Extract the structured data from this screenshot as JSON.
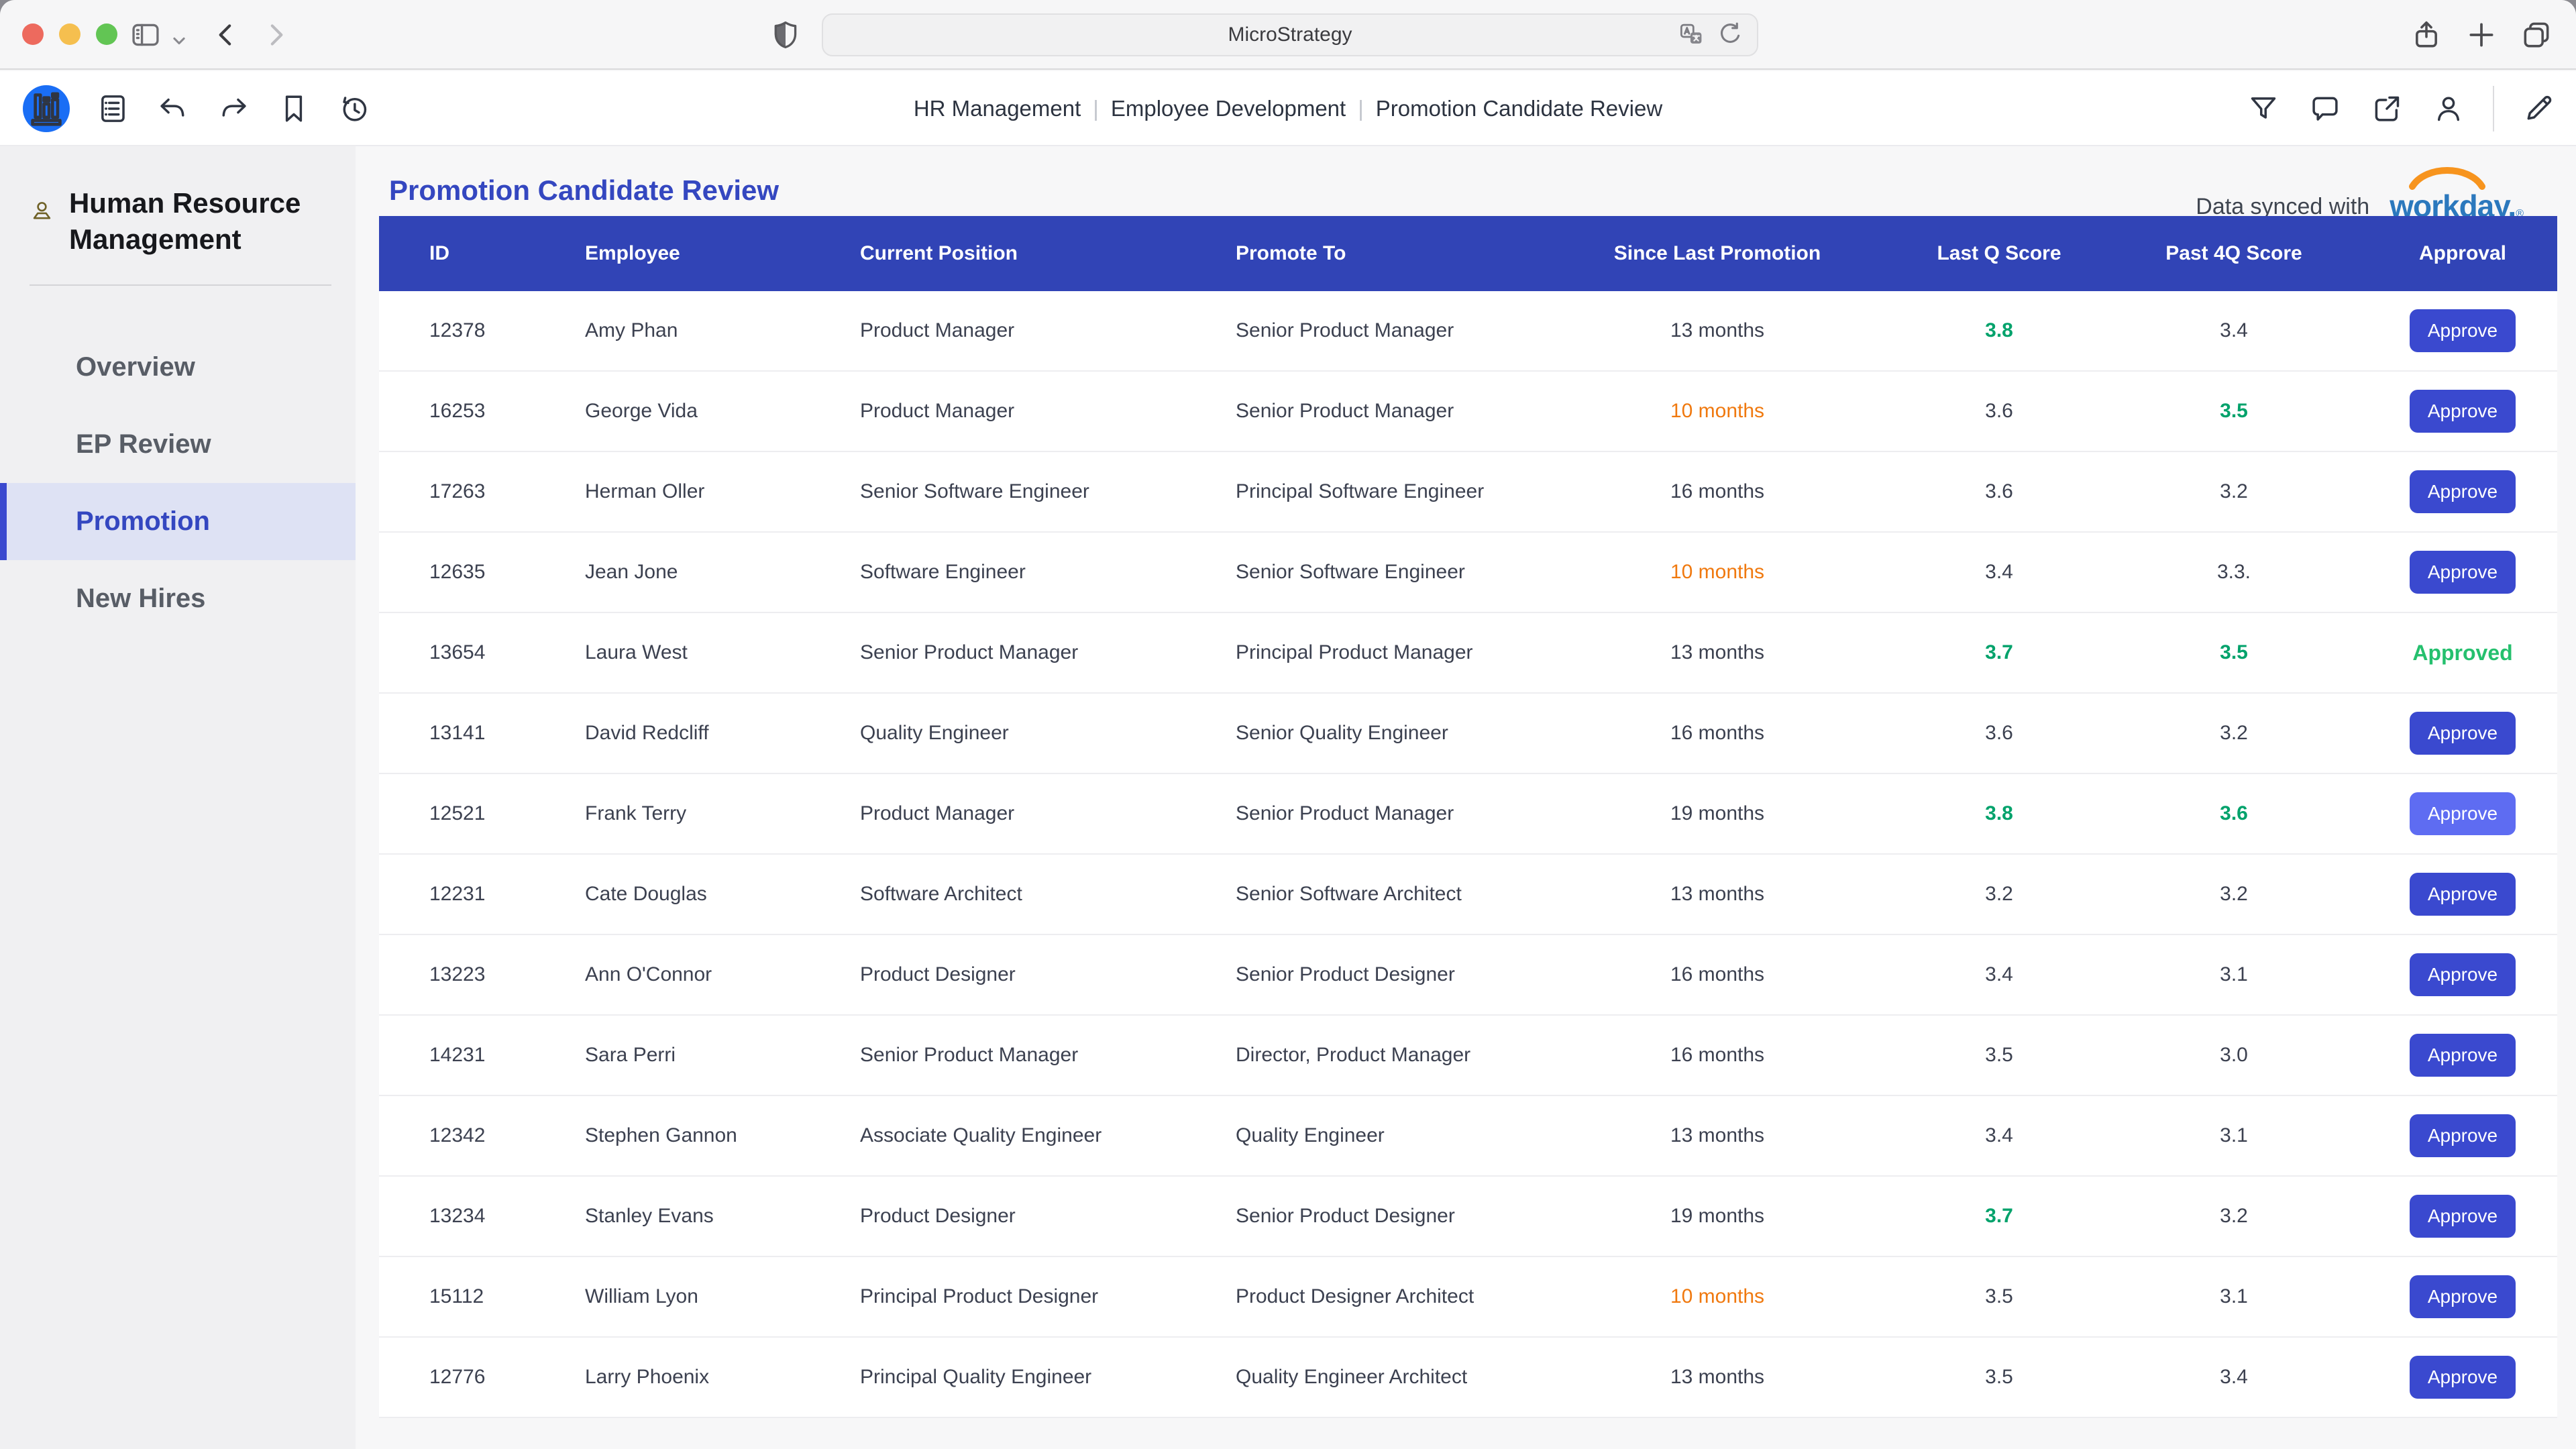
{
  "browser": {
    "url_label": "MicroStrategy"
  },
  "toolbar": {
    "breadcrumb": [
      "HR Management",
      "Employee Development",
      "Promotion Candidate Review"
    ],
    "separator": "|"
  },
  "sidebar": {
    "title": "Human Resource Management",
    "items": [
      {
        "label": "Overview",
        "active": false
      },
      {
        "label": "EP Review",
        "active": false
      },
      {
        "label": "Promotion",
        "active": true
      },
      {
        "label": "New Hires",
        "active": false
      }
    ]
  },
  "main": {
    "title": "Promotion Candidate Review",
    "synced_label": "Data synced with",
    "synced_brand": "workday.",
    "synced_brand_mark": "®",
    "table": {
      "columns": [
        "ID",
        "Employee",
        "Current Position",
        "Promote To",
        "Since Last Promotion",
        "Last Q Score",
        "Past 4Q Score",
        "Approval"
      ],
      "rows": [
        {
          "id": "12378",
          "employee": "Amy Phan",
          "current_position": "Product Manager",
          "promote_to": "Senior Product Manager",
          "since_last_promotion": "13 months",
          "since_alert": false,
          "last_q_score": "3.8",
          "last_q_strong": true,
          "past_4q_score": "3.4",
          "past_4q_strong": false,
          "approval": {
            "type": "button",
            "label": "Approve"
          }
        },
        {
          "id": "16253",
          "employee": "George Vida",
          "current_position": "Product Manager",
          "promote_to": "Senior Product Manager",
          "since_last_promotion": "10 months",
          "since_alert": true,
          "last_q_score": "3.6",
          "last_q_strong": false,
          "past_4q_score": "3.5",
          "past_4q_strong": true,
          "approval": {
            "type": "button",
            "label": "Approve"
          }
        },
        {
          "id": "17263",
          "employee": "Herman Oller",
          "current_position": "Senior Software Engineer",
          "promote_to": "Principal Software Engineer",
          "since_last_promotion": "16 months",
          "since_alert": false,
          "last_q_score": "3.6",
          "last_q_strong": false,
          "past_4q_score": "3.2",
          "past_4q_strong": false,
          "approval": {
            "type": "button",
            "label": "Approve"
          }
        },
        {
          "id": "12635",
          "employee": "Jean Jone",
          "current_position": "Software Engineer",
          "promote_to": "Senior Software Engineer",
          "since_last_promotion": "10 months",
          "since_alert": true,
          "last_q_score": "3.4",
          "last_q_strong": false,
          "past_4q_score": "3.3.",
          "past_4q_strong": false,
          "approval": {
            "type": "button",
            "label": "Approve"
          }
        },
        {
          "id": "13654",
          "employee": "Laura West",
          "current_position": "Senior Product Manager",
          "promote_to": "Principal Product Manager",
          "since_last_promotion": "13 months",
          "since_alert": false,
          "last_q_score": "3.7",
          "last_q_strong": true,
          "past_4q_score": "3.5",
          "past_4q_strong": true,
          "approval": {
            "type": "label",
            "label": "Approved"
          }
        },
        {
          "id": "13141",
          "employee": "David Redcliff",
          "current_position": "Quality Engineer",
          "promote_to": "Senior Quality Engineer",
          "since_last_promotion": "16 months",
          "since_alert": false,
          "last_q_score": "3.6",
          "last_q_strong": false,
          "past_4q_score": "3.2",
          "past_4q_strong": false,
          "approval": {
            "type": "button",
            "label": "Approve"
          }
        },
        {
          "id": "12521",
          "employee": "Frank Terry",
          "current_position": "Product Manager",
          "promote_to": "Senior Product Manager",
          "since_last_promotion": "19 months",
          "since_alert": false,
          "last_q_score": "3.8",
          "last_q_strong": true,
          "past_4q_score": "3.6",
          "past_4q_strong": true,
          "approval": {
            "type": "button_light",
            "label": "Approve"
          }
        },
        {
          "id": "12231",
          "employee": "Cate Douglas",
          "current_position": "Software Architect",
          "promote_to": "Senior Software Architect",
          "since_last_promotion": "13 months",
          "since_alert": false,
          "last_q_score": "3.2",
          "last_q_strong": false,
          "past_4q_score": "3.2",
          "past_4q_strong": false,
          "approval": {
            "type": "button",
            "label": "Approve"
          }
        },
        {
          "id": "13223",
          "employee": "Ann O'Connor",
          "current_position": "Product Designer",
          "promote_to": "Senior Product Designer",
          "since_last_promotion": "16 months",
          "since_alert": false,
          "last_q_score": "3.4",
          "last_q_strong": false,
          "past_4q_score": "3.1",
          "past_4q_strong": false,
          "approval": {
            "type": "button",
            "label": "Approve"
          }
        },
        {
          "id": "14231",
          "employee": "Sara Perri",
          "current_position": "Senior Product Manager",
          "promote_to": "Director, Product Manager",
          "since_last_promotion": "16 months",
          "since_alert": false,
          "last_q_score": "3.5",
          "last_q_strong": false,
          "past_4q_score": "3.0",
          "past_4q_strong": false,
          "approval": {
            "type": "button",
            "label": "Approve"
          }
        },
        {
          "id": "12342",
          "employee": "Stephen Gannon",
          "current_position": "Associate Quality Engineer",
          "promote_to": "Quality Engineer",
          "since_last_promotion": "13 months",
          "since_alert": false,
          "last_q_score": "3.4",
          "last_q_strong": false,
          "past_4q_score": "3.1",
          "past_4q_strong": false,
          "approval": {
            "type": "button",
            "label": "Approve"
          }
        },
        {
          "id": "13234",
          "employee": "Stanley Evans",
          "current_position": "Product Designer",
          "promote_to": "Senior Product Designer",
          "since_last_promotion": "19 months",
          "since_alert": false,
          "last_q_score": "3.7",
          "last_q_strong": true,
          "past_4q_score": "3.2",
          "past_4q_strong": false,
          "approval": {
            "type": "button",
            "label": "Approve"
          }
        },
        {
          "id": "15112",
          "employee": "William Lyon",
          "current_position": "Principal Product Designer",
          "promote_to": "Product Designer Architect",
          "since_last_promotion": "10 months",
          "since_alert": true,
          "last_q_score": "3.5",
          "last_q_strong": false,
          "past_4q_score": "3.1",
          "past_4q_strong": false,
          "approval": {
            "type": "button",
            "label": "Approve"
          }
        },
        {
          "id": "12776",
          "employee": "Larry Phoenix",
          "current_position": "Principal Quality Engineer",
          "promote_to": "Quality Engineer Architect",
          "since_last_promotion": "13 months",
          "since_alert": false,
          "last_q_score": "3.5",
          "last_q_strong": false,
          "past_4q_score": "3.4",
          "past_4q_strong": false,
          "approval": {
            "type": "button",
            "label": "Approve"
          }
        }
      ]
    }
  },
  "colors": {
    "header_blue": "#3144b6",
    "accent_blue": "#3447c0",
    "button_blue": "#3a49cf",
    "button_blue_light": "#5e6cf2",
    "score_green": "#00a26b",
    "approved_green": "#25c06e",
    "alert_orange": "#f0790f",
    "workday_blue": "#2b78bd",
    "workday_orange": "#f7941e"
  }
}
